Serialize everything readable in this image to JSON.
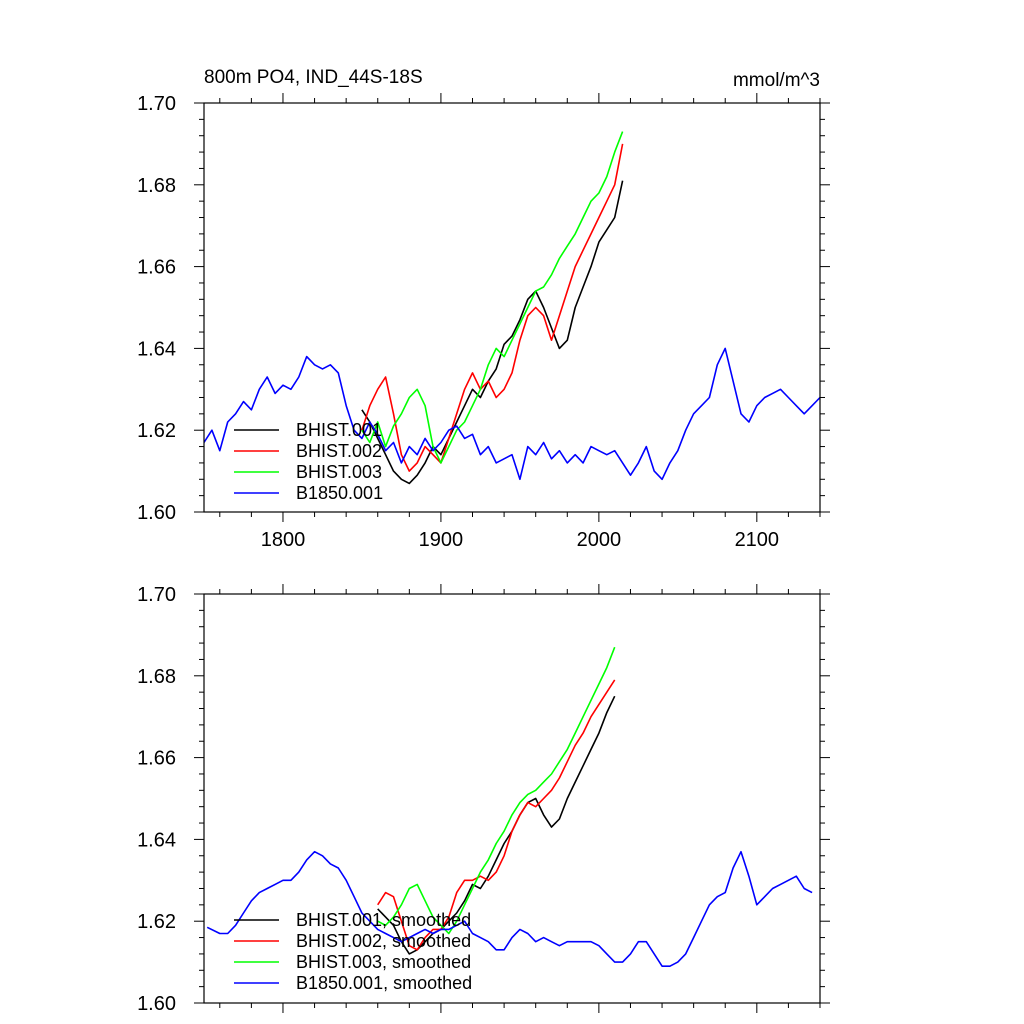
{
  "header": {
    "title": "800m PO4, IND_44S-18S",
    "units": "mmol/m^3"
  },
  "colors": {
    "BHIST.001": "#000000",
    "BHIST.002": "#ff0000",
    "BHIST.003": "#00ff00",
    "B1850.001": "#0000ff"
  },
  "chart_data": [
    {
      "type": "line",
      "title": "800m PO4, IND_44S-18S",
      "units": "mmol/m^3",
      "xlim": [
        1750,
        2140
      ],
      "ylim": [
        1.6,
        1.7
      ],
      "x_ticks": [
        1800,
        1900,
        2000,
        2100
      ],
      "x_tick_labels": [
        "1800",
        "1900",
        "2000",
        "2100"
      ],
      "y_ticks": [
        1.6,
        1.62,
        1.64,
        1.66,
        1.68,
        1.7
      ],
      "y_tick_labels": [
        "1.60",
        "1.62",
        "1.64",
        "1.66",
        "1.68",
        "1.70"
      ],
      "legend_position": "bottom-left",
      "series": [
        {
          "name": "BHIST.001",
          "color": "#000000",
          "x": [
            1850,
            1855,
            1860,
            1865,
            1870,
            1875,
            1880,
            1885,
            1890,
            1895,
            1900,
            1905,
            1910,
            1915,
            1920,
            1925,
            1930,
            1935,
            1940,
            1945,
            1950,
            1955,
            1960,
            1965,
            1970,
            1975,
            1980,
            1985,
            1990,
            1995,
            2000,
            2005,
            2010,
            2015
          ],
          "y": [
            1.625,
            1.622,
            1.618,
            1.614,
            1.61,
            1.608,
            1.607,
            1.609,
            1.612,
            1.616,
            1.614,
            1.618,
            1.622,
            1.626,
            1.63,
            1.628,
            1.632,
            1.635,
            1.641,
            1.643,
            1.647,
            1.652,
            1.654,
            1.65,
            1.645,
            1.64,
            1.642,
            1.65,
            1.655,
            1.66,
            1.666,
            1.669,
            1.672,
            1.681
          ]
        },
        {
          "name": "BHIST.002",
          "color": "#ff0000",
          "x": [
            1850,
            1855,
            1860,
            1865,
            1870,
            1875,
            1880,
            1885,
            1890,
            1895,
            1900,
            1905,
            1910,
            1915,
            1920,
            1925,
            1930,
            1935,
            1940,
            1945,
            1950,
            1955,
            1960,
            1965,
            1970,
            1975,
            1980,
            1985,
            1990,
            1995,
            2000,
            2005,
            2010,
            2015
          ],
          "y": [
            1.62,
            1.626,
            1.63,
            1.633,
            1.624,
            1.614,
            1.61,
            1.612,
            1.616,
            1.614,
            1.612,
            1.618,
            1.624,
            1.63,
            1.634,
            1.63,
            1.632,
            1.628,
            1.63,
            1.634,
            1.642,
            1.648,
            1.65,
            1.648,
            1.642,
            1.648,
            1.654,
            1.66,
            1.664,
            1.668,
            1.672,
            1.676,
            1.68,
            1.69
          ]
        },
        {
          "name": "BHIST.003",
          "color": "#00ff00",
          "x": [
            1850,
            1855,
            1860,
            1865,
            1870,
            1875,
            1880,
            1885,
            1890,
            1895,
            1900,
            1905,
            1910,
            1915,
            1920,
            1925,
            1930,
            1935,
            1940,
            1945,
            1950,
            1955,
            1960,
            1965,
            1970,
            1975,
            1980,
            1985,
            1990,
            1995,
            2000,
            2005,
            2010,
            2015
          ],
          "y": [
            1.62,
            1.617,
            1.622,
            1.616,
            1.621,
            1.624,
            1.628,
            1.63,
            1.626,
            1.616,
            1.612,
            1.616,
            1.62,
            1.622,
            1.626,
            1.63,
            1.636,
            1.64,
            1.638,
            1.642,
            1.646,
            1.65,
            1.654,
            1.655,
            1.658,
            1.662,
            1.665,
            1.668,
            1.672,
            1.676,
            1.678,
            1.682,
            1.688,
            1.693
          ]
        },
        {
          "name": "B1850.001",
          "color": "#0000ff",
          "x": [
            1750,
            1755,
            1760,
            1765,
            1770,
            1775,
            1780,
            1785,
            1790,
            1795,
            1800,
            1805,
            1810,
            1815,
            1820,
            1825,
            1830,
            1835,
            1840,
            1845,
            1850,
            1855,
            1860,
            1865,
            1870,
            1875,
            1880,
            1885,
            1890,
            1895,
            1900,
            1905,
            1910,
            1915,
            1920,
            1925,
            1930,
            1935,
            1940,
            1945,
            1950,
            1955,
            1960,
            1965,
            1970,
            1975,
            1980,
            1985,
            1990,
            1995,
            2000,
            2005,
            2010,
            2015,
            2020,
            2025,
            2030,
            2035,
            2040,
            2045,
            2050,
            2055,
            2060,
            2065,
            2070,
            2075,
            2080,
            2085,
            2090,
            2095,
            2100,
            2105,
            2110,
            2115,
            2120,
            2125,
            2130,
            2135,
            2140
          ],
          "y": [
            1.617,
            1.62,
            1.615,
            1.622,
            1.624,
            1.627,
            1.625,
            1.63,
            1.633,
            1.629,
            1.631,
            1.63,
            1.633,
            1.638,
            1.636,
            1.635,
            1.636,
            1.634,
            1.626,
            1.62,
            1.618,
            1.622,
            1.619,
            1.615,
            1.617,
            1.612,
            1.616,
            1.614,
            1.618,
            1.615,
            1.617,
            1.62,
            1.621,
            1.618,
            1.619,
            1.614,
            1.616,
            1.612,
            1.613,
            1.614,
            1.608,
            1.616,
            1.614,
            1.617,
            1.613,
            1.615,
            1.612,
            1.614,
            1.612,
            1.616,
            1.615,
            1.614,
            1.615,
            1.612,
            1.609,
            1.612,
            1.616,
            1.61,
            1.608,
            1.612,
            1.615,
            1.62,
            1.624,
            1.626,
            1.628,
            1.636,
            1.64,
            1.632,
            1.624,
            1.622,
            1.626,
            1.628,
            1.629,
            1.63,
            1.628,
            1.626,
            1.624,
            1.626,
            1.628
          ]
        }
      ]
    },
    {
      "type": "line",
      "xlim": [
        1750,
        2140
      ],
      "ylim": [
        1.6,
        1.7
      ],
      "x_ticks": [
        1800,
        1900,
        2000,
        2100
      ],
      "y_ticks": [
        1.6,
        1.62,
        1.64,
        1.66,
        1.68,
        1.7
      ],
      "y_tick_labels": [
        "1.60",
        "1.62",
        "1.64",
        "1.66",
        "1.68",
        "1.70"
      ],
      "legend_position": "bottom-left",
      "series": [
        {
          "name": "BHIST.001, smoothed",
          "color": "#000000",
          "x": [
            1860,
            1865,
            1870,
            1875,
            1880,
            1885,
            1890,
            1895,
            1900,
            1905,
            1910,
            1915,
            1920,
            1925,
            1930,
            1935,
            1940,
            1945,
            1950,
            1955,
            1960,
            1965,
            1970,
            1975,
            1980,
            1985,
            1990,
            1995,
            2000,
            2005,
            2010
          ],
          "y": [
            1.623,
            1.621,
            1.619,
            1.615,
            1.612,
            1.613,
            1.615,
            1.617,
            1.618,
            1.62,
            1.622,
            1.625,
            1.629,
            1.628,
            1.631,
            1.635,
            1.639,
            1.642,
            1.646,
            1.649,
            1.65,
            1.646,
            1.643,
            1.645,
            1.65,
            1.654,
            1.658,
            1.662,
            1.666,
            1.671,
            1.675
          ]
        },
        {
          "name": "BHIST.002, smoothed",
          "color": "#ff0000",
          "x": [
            1860,
            1865,
            1870,
            1875,
            1880,
            1885,
            1890,
            1895,
            1900,
            1905,
            1910,
            1915,
            1920,
            1925,
            1930,
            1935,
            1940,
            1945,
            1950,
            1955,
            1960,
            1965,
            1970,
            1975,
            1980,
            1985,
            1990,
            1995,
            2000,
            2005,
            2010
          ],
          "y": [
            1.624,
            1.627,
            1.626,
            1.62,
            1.614,
            1.613,
            1.616,
            1.618,
            1.618,
            1.621,
            1.627,
            1.63,
            1.63,
            1.631,
            1.63,
            1.632,
            1.636,
            1.642,
            1.646,
            1.649,
            1.648,
            1.65,
            1.652,
            1.655,
            1.659,
            1.663,
            1.666,
            1.67,
            1.673,
            1.676,
            1.679
          ]
        },
        {
          "name": "BHIST.003, smoothed",
          "color": "#00ff00",
          "x": [
            1860,
            1865,
            1870,
            1875,
            1880,
            1885,
            1890,
            1895,
            1900,
            1905,
            1910,
            1915,
            1920,
            1925,
            1930,
            1935,
            1940,
            1945,
            1950,
            1955,
            1960,
            1965,
            1970,
            1975,
            1980,
            1985,
            1990,
            1995,
            2000,
            2005,
            2010
          ],
          "y": [
            1.62,
            1.619,
            1.621,
            1.624,
            1.628,
            1.629,
            1.625,
            1.621,
            1.619,
            1.617,
            1.62,
            1.624,
            1.628,
            1.632,
            1.635,
            1.639,
            1.642,
            1.646,
            1.649,
            1.651,
            1.652,
            1.654,
            1.656,
            1.659,
            1.662,
            1.666,
            1.67,
            1.674,
            1.678,
            1.682,
            1.687
          ]
        },
        {
          "name": "B1850.001, smoothed",
          "color": "#0000ff",
          "x": [
            1752,
            1760,
            1765,
            1770,
            1775,
            1780,
            1785,
            1790,
            1795,
            1800,
            1805,
            1810,
            1815,
            1820,
            1825,
            1830,
            1835,
            1840,
            1845,
            1850,
            1855,
            1860,
            1865,
            1870,
            1875,
            1880,
            1885,
            1890,
            1895,
            1900,
            1905,
            1910,
            1915,
            1920,
            1925,
            1930,
            1935,
            1940,
            1945,
            1950,
            1955,
            1960,
            1965,
            1970,
            1975,
            1980,
            1985,
            1990,
            1995,
            2000,
            2005,
            2010,
            2015,
            2020,
            2025,
            2030,
            2035,
            2040,
            2045,
            2050,
            2055,
            2060,
            2065,
            2070,
            2075,
            2080,
            2085,
            2090,
            2095,
            2100,
            2105,
            2110,
            2115,
            2120,
            2125,
            2130,
            2135
          ],
          "y": [
            1.6185,
            1.617,
            1.617,
            1.619,
            1.622,
            1.625,
            1.627,
            1.628,
            1.629,
            1.63,
            1.63,
            1.632,
            1.635,
            1.637,
            1.636,
            1.634,
            1.633,
            1.63,
            1.626,
            1.622,
            1.62,
            1.618,
            1.617,
            1.616,
            1.615,
            1.616,
            1.617,
            1.618,
            1.617,
            1.618,
            1.618,
            1.619,
            1.62,
            1.617,
            1.616,
            1.615,
            1.613,
            1.613,
            1.616,
            1.618,
            1.617,
            1.615,
            1.616,
            1.615,
            1.614,
            1.615,
            1.615,
            1.615,
            1.615,
            1.614,
            1.612,
            1.61,
            1.61,
            1.612,
            1.615,
            1.615,
            1.612,
            1.609,
            1.609,
            1.61,
            1.612,
            1.616,
            1.62,
            1.624,
            1.626,
            1.627,
            1.633,
            1.637,
            1.631,
            1.624,
            1.626,
            1.628,
            1.629,
            1.63,
            1.631,
            1.628,
            1.627
          ]
        }
      ]
    }
  ]
}
